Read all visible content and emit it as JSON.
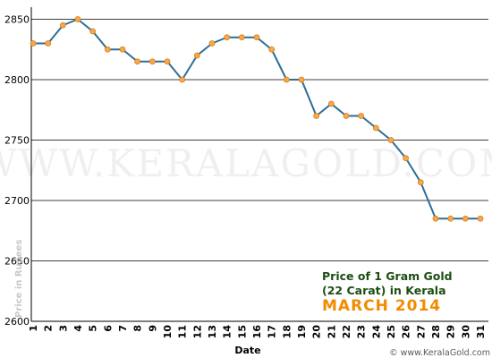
{
  "chart_data": {
    "type": "line",
    "title": "",
    "xlabel": "Date",
    "ylabel": "Price in Rupees",
    "ylim": [
      2600,
      2860
    ],
    "yticks": [
      2600,
      2650,
      2700,
      2750,
      2800,
      2850
    ],
    "x": [
      1,
      2,
      3,
      4,
      5,
      6,
      7,
      8,
      9,
      10,
      11,
      12,
      13,
      14,
      15,
      16,
      17,
      18,
      19,
      20,
      21,
      22,
      23,
      24,
      25,
      26,
      27,
      28,
      29,
      30,
      31
    ],
    "series": [
      {
        "values": [
          2830,
          2830,
          2845,
          2850,
          2840,
          2825,
          2825,
          2815,
          2815,
          2815,
          2800,
          2820,
          2830,
          2835,
          2835,
          2835,
          2825,
          2800,
          2800,
          2770,
          2780,
          2770,
          2770,
          2760,
          2750,
          2735,
          2715,
          2685,
          2685,
          2685,
          2685
        ]
      }
    ],
    "grid": "horizontal",
    "watermark": "WWW.KERALAGOLD.COM",
    "annotation": {
      "line1": "Price of 1 Gram Gold",
      "line2": "(22 Carat) in Kerala",
      "line3": "MARCH 2014"
    },
    "credit": "© www.KeralaGold.com"
  },
  "colors": {
    "line": "#2d6e97",
    "marker_fill": "#f7a74c",
    "marker_stroke": "#d97c10",
    "grid": "#000000",
    "annotation_title": "#1e4d14",
    "annotation_month": "#f28b00"
  }
}
